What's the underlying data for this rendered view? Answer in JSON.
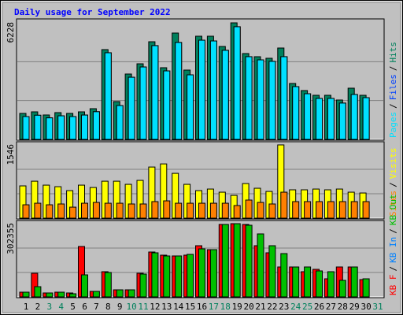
{
  "chart_data": [
    {
      "type": "bar",
      "title": "Daily usage for September 2022",
      "ylim": [
        0,
        6228
      ],
      "yticks": [
        6228
      ],
      "legend_reverse": true,
      "legend_separator": "/",
      "series": [
        {
          "name": "Hits",
          "color": "#00805c",
          "values": [
            1389,
            1473,
            1305,
            1431,
            1389,
            1473,
            1641,
            4798,
            2020,
            3493,
            4040,
            5218,
            3830,
            5682,
            3704,
            5513,
            5513,
            4966,
            6228,
            4587,
            4419,
            4335,
            4882,
            2988,
            2610,
            2357,
            2357,
            2104,
            2736,
            2357,
            0
          ]
        },
        {
          "name": "Files",
          "color": "#0040ff",
          "values": [
            1220,
            1290,
            1150,
            1260,
            1220,
            1300,
            1480,
            4630,
            1810,
            3320,
            3870,
            5010,
            3660,
            5180,
            3450,
            5300,
            5260,
            4760,
            6020,
            4420,
            4250,
            4170,
            4420,
            2820,
            2440,
            2190,
            2190,
            1940,
            2400,
            2230,
            0
          ]
        },
        {
          "name": "Pages",
          "color": "#00e0ff",
          "values": [
            1220,
            1290,
            1150,
            1260,
            1220,
            1300,
            1480,
            4630,
            1810,
            3320,
            3870,
            5010,
            3660,
            5180,
            3450,
            5300,
            5260,
            4760,
            6020,
            4420,
            4250,
            4170,
            4420,
            2820,
            2440,
            2190,
            2190,
            1940,
            2400,
            2230,
            0
          ]
        }
      ]
    },
    {
      "type": "bar",
      "ylim": [
        0,
        1546
      ],
      "yticks": [
        1546
      ],
      "legend_reverse": true,
      "legend_separator": "/",
      "series": [
        {
          "name": "Visits",
          "color": "#ffff00",
          "values": [
            681,
            780,
            697,
            664,
            581,
            697,
            647,
            780,
            780,
            714,
            797,
            1079,
            1145,
            946,
            714,
            581,
            614,
            548,
            481,
            730,
            631,
            564,
            1546,
            598,
            598,
            614,
            598,
            614,
            548,
            531,
            0
          ]
        },
        {
          "name": "Sites",
          "color": "#ff8000",
          "values": [
            282,
            315,
            282,
            299,
            232,
            315,
            332,
            315,
            315,
            299,
            299,
            349,
            365,
            315,
            315,
            315,
            315,
            315,
            266,
            382,
            332,
            299,
            548,
            349,
            349,
            349,
            349,
            349,
            349,
            349,
            0
          ]
        }
      ]
    },
    {
      "type": "bar",
      "ylim": [
        0,
        302355
      ],
      "yticks": [
        302355
      ],
      "legend_reverse": false,
      "legend_separator": "/",
      "categories": [
        "1",
        "2",
        "3",
        "4",
        "5",
        "6",
        "7",
        "8",
        "9",
        "10",
        "11",
        "12",
        "13",
        "14",
        "15",
        "16",
        "17",
        "18",
        "19",
        "20",
        "21",
        "22",
        "23",
        "24",
        "25",
        "26",
        "27",
        "28",
        "29",
        "30",
        "31"
      ],
      "category_colors": [
        "#000000",
        "#000000",
        "#00805c",
        "#00805c",
        "#000000",
        "#000000",
        "#000000",
        "#000000",
        "#000000",
        "#00805c",
        "#00805c",
        "#000000",
        "#000000",
        "#000000",
        "#000000",
        "#000000",
        "#00805c",
        "#00805c",
        "#000000",
        "#000000",
        "#000000",
        "#000000",
        "#000000",
        "#00805c",
        "#00805c",
        "#000000",
        "#000000",
        "#000000",
        "#000000",
        "#000000",
        "#00805c"
      ],
      "series": [
        {
          "name": "KB F",
          "color": "#ff0000",
          "values": [
            19506,
            97530,
            16255,
            19506,
            16255,
            208064,
            22757,
            104032,
            29259,
            29259,
            97530,
            185307,
            172303,
            169052,
            172303,
            211315,
            195060,
            299104,
            302355,
            299104,
            211315,
            182056,
            123538,
            123538,
            104032,
            113785,
            74773,
            123538,
            123538,
            71522,
            0
          ]
        },
        {
          "name": "KB In",
          "color": "#0080ff",
          "values": [
            0,
            0,
            0,
            0,
            0,
            0,
            0,
            0,
            0,
            0,
            0,
            0,
            0,
            0,
            0,
            0,
            0,
            0,
            0,
            0,
            0,
            0,
            0,
            0,
            0,
            0,
            0,
            0,
            0,
            0,
            0
          ]
        },
        {
          "name": "KB Out",
          "color": "#00c000",
          "values": [
            19506,
            42263,
            16255,
            19506,
            13004,
            91028,
            22757,
            100781,
            29259,
            29259,
            94279,
            182056,
            169052,
            169052,
            175554,
            198311,
            195060,
            299104,
            302355,
            295853,
            260080,
            211315,
            178805,
            123538,
            123538,
            107283,
            104032,
            68271,
            123538,
            74773,
            0
          ]
        }
      ]
    }
  ]
}
